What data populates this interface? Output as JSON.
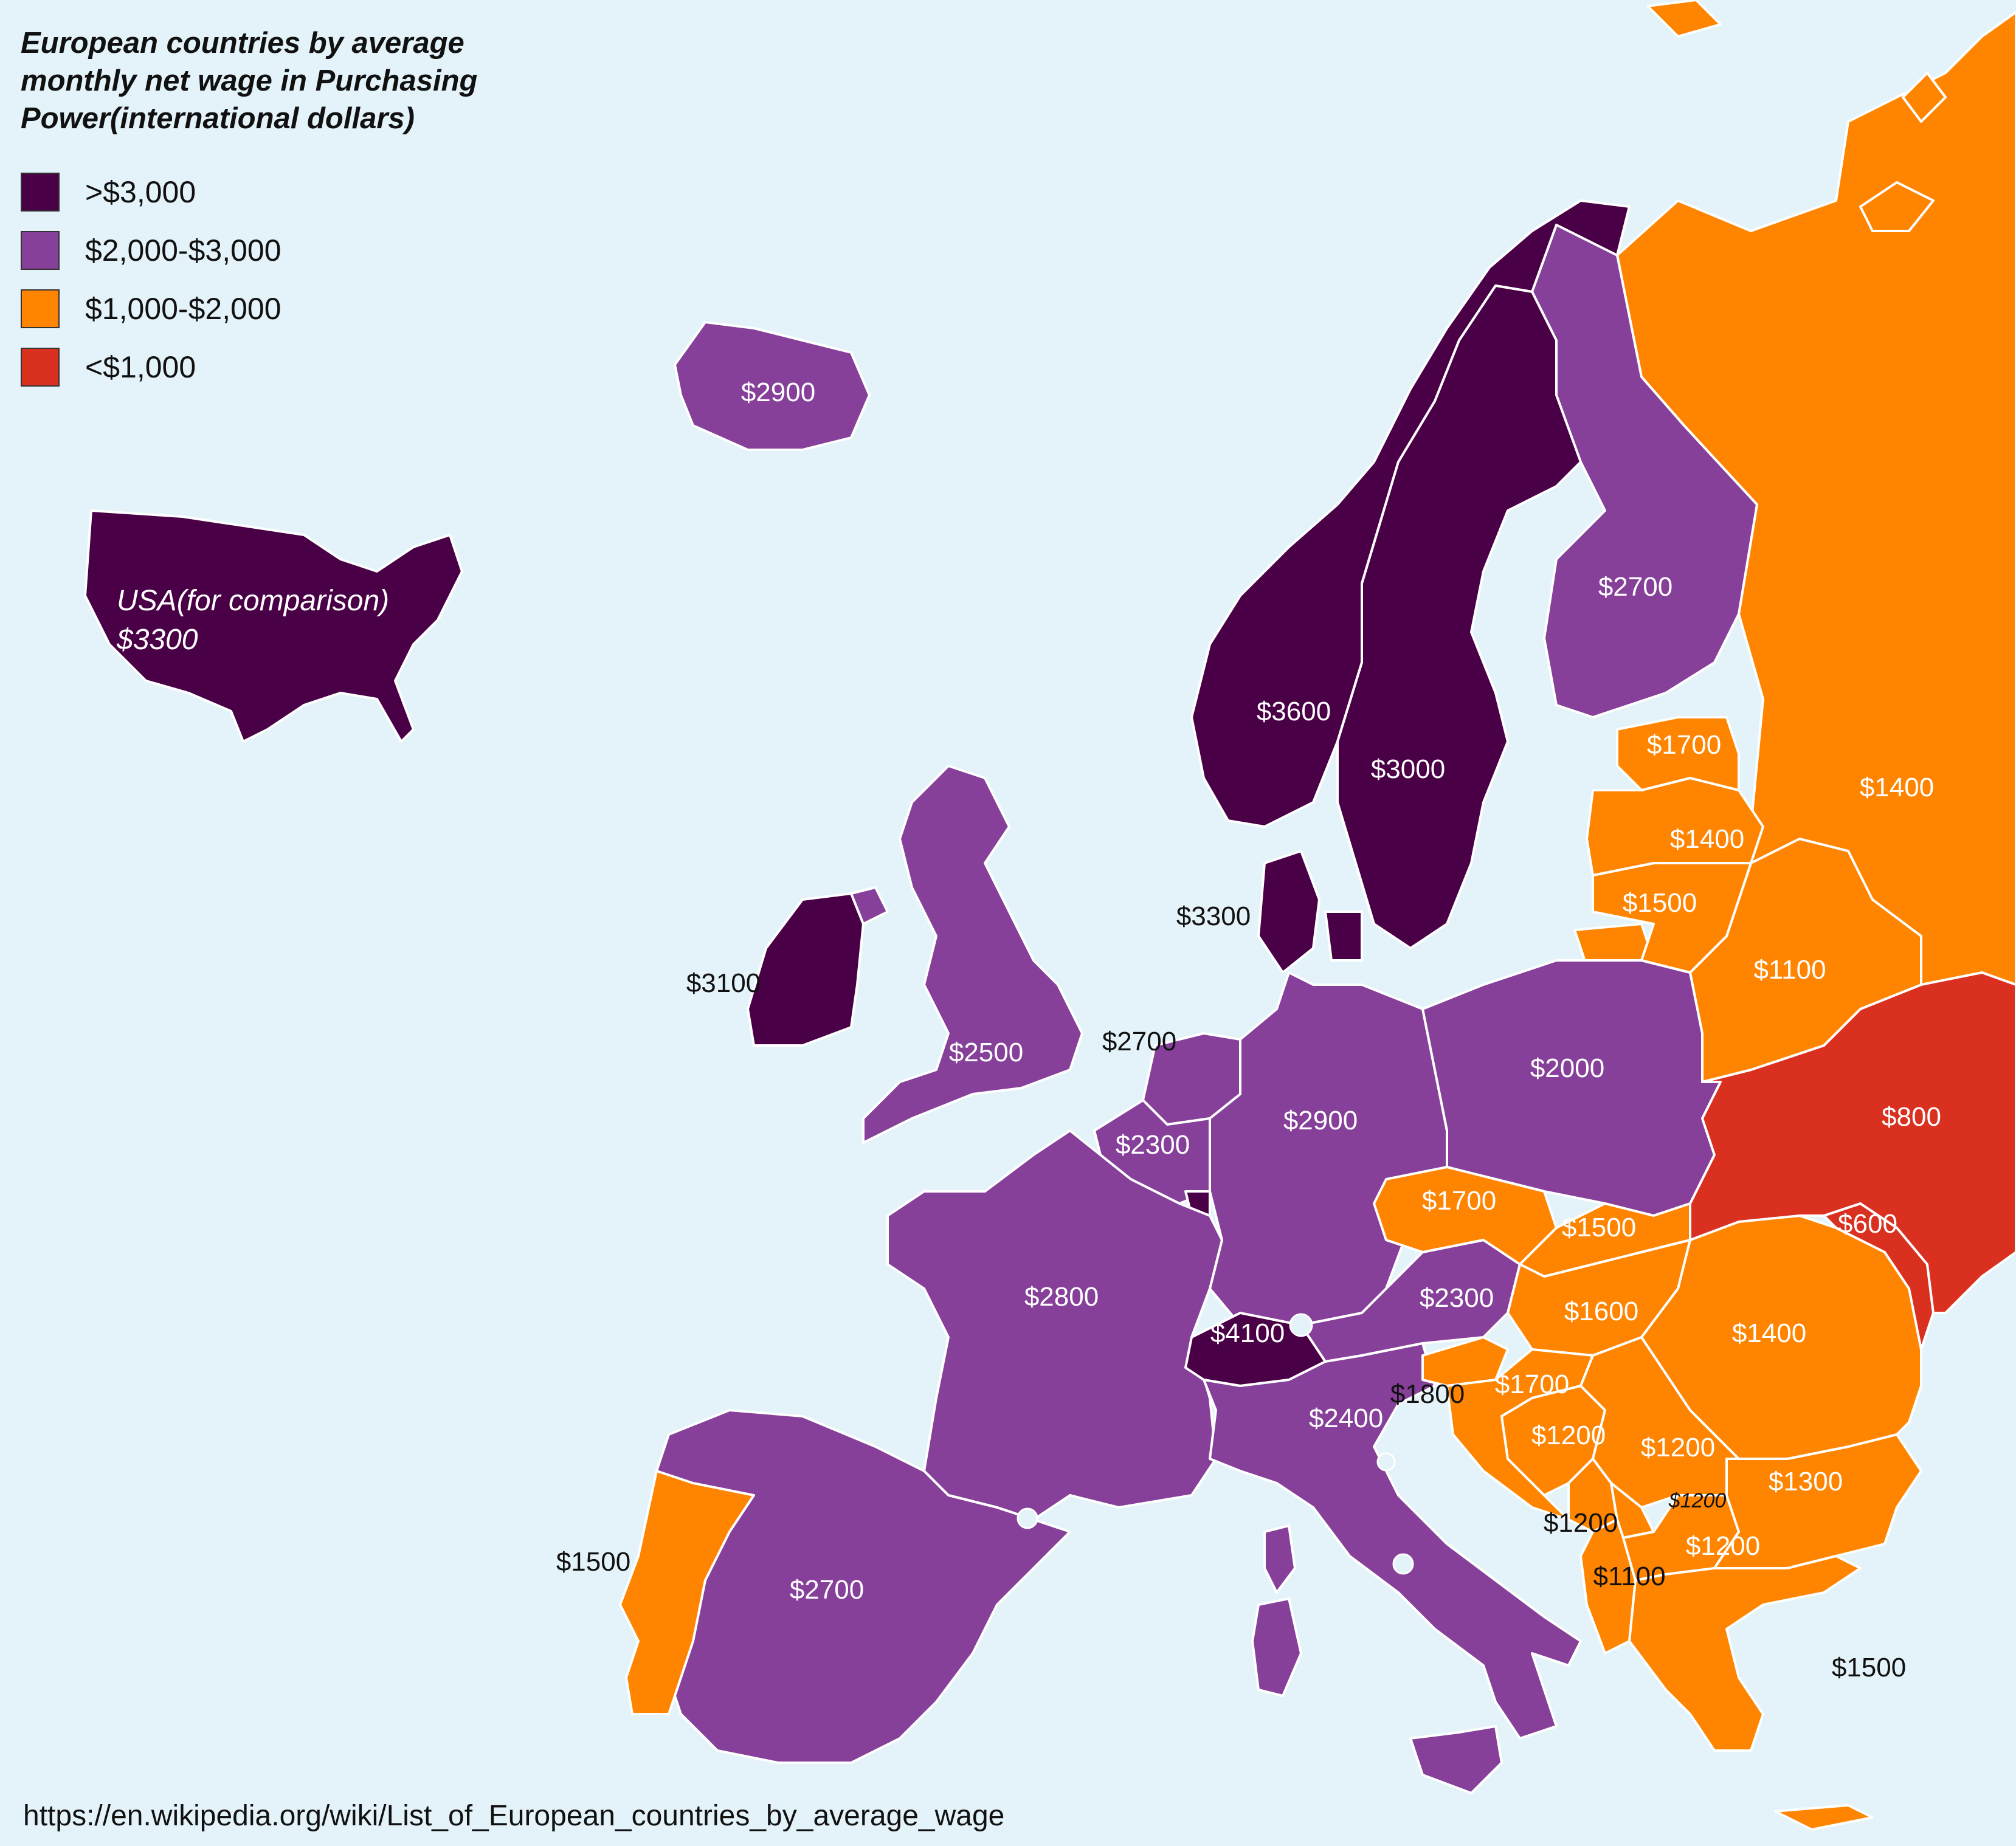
{
  "title": "European countries by average monthly net wage in Purchasing Power(international dollars)",
  "legend": [
    {
      "label": ">$3,000",
      "color": "#4a0046"
    },
    {
      "label": "$2,000-$3,000",
      "color": "#86409a"
    },
    {
      "label": "$1,000-$2,000",
      "color": "#ff8400"
    },
    {
      "label": "<$1,000",
      "color": "#d93020"
    }
  ],
  "colors": {
    "sea": "#e4f3f9",
    "border": "#ffffff"
  },
  "usa": {
    "line1": "USA(for comparison)",
    "line2": "$3300"
  },
  "labels": {
    "iceland": "$2900",
    "norway": "$3600",
    "sweden": "$3000",
    "finland": "$2700",
    "russia": "$1400",
    "estonia": "$1700",
    "latvia": "$1400",
    "lithuania": "$1500",
    "belarus": "$1100",
    "denmark": "$3300",
    "ireland": "$3100",
    "uk": "$2500",
    "netherlands": "$2700",
    "belgium": "$2300",
    "germany": "$2900",
    "poland": "$2000",
    "ukraine": "$800",
    "moldova": "$600",
    "czechia": "$1700",
    "slovakia": "$1500",
    "austria": "$2300",
    "hungary": "$1600",
    "romania": "$1400",
    "switzerland": "$4100",
    "france": "$2800",
    "italy": "$2400",
    "slovenia": "$1800",
    "croatia": "$1700",
    "bosnia": "$1200",
    "serbia": "$1200",
    "bulgaria": "$1300",
    "kosovo": "$1200",
    "montenegro": "$1200",
    "albania": "$1100",
    "north_macedonia": "$1200",
    "greece": "$1500",
    "portugal": "$1500",
    "spain": "$2700"
  },
  "source": "https://en.wikipedia.org/wiki/List_of_European_countries_by_average_wage"
}
